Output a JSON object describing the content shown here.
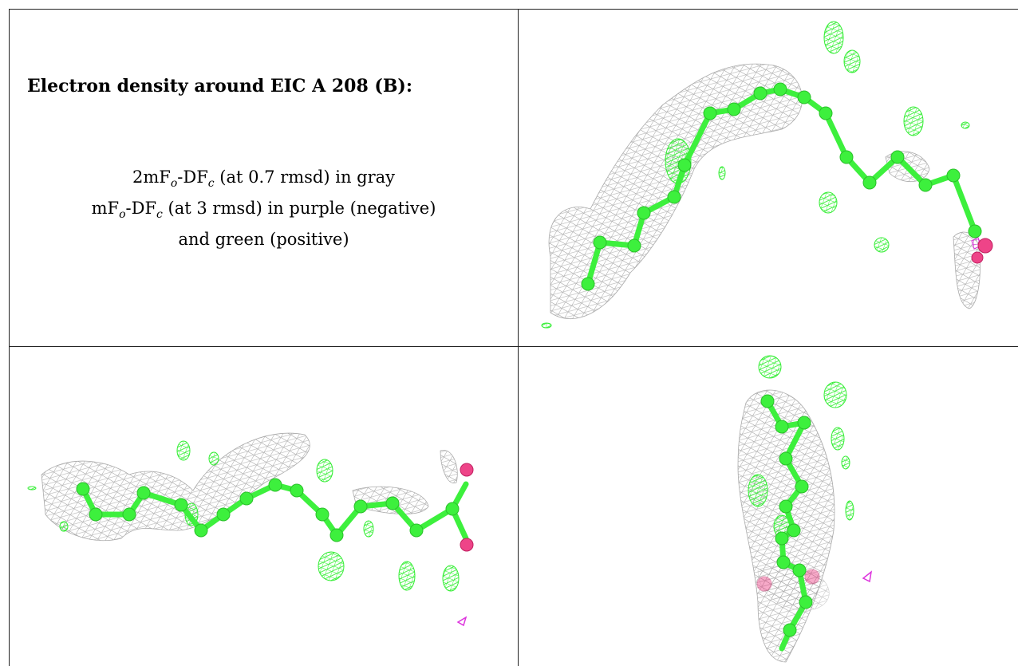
{
  "caption": {
    "title": "Electron density around EIC A 208 (B):",
    "line1_prefix": "2mF",
    "line1_sub1": "o",
    "line1_mid": "-DF",
    "line1_sub2": "c",
    "line1_suffix": " (at 0.7 rmsd) in gray",
    "line2_prefix": "mF",
    "line2_sub1": "o",
    "line2_mid": "-DF",
    "line2_sub2": "c",
    "line2_suffix": " (at 3 rmsd) in purple (negative)",
    "line3": "and green (positive)"
  },
  "colors": {
    "atom_carbon": "#3df03d",
    "atom_oxygen": "#ee4488",
    "mesh_gray": "#9a9a9a",
    "mesh_positive": "#33ee33",
    "mesh_negative": "#dd33dd",
    "border": "#222222"
  },
  "panels": [
    "view-top-right",
    "view-bottom-left",
    "view-bottom-right"
  ]
}
